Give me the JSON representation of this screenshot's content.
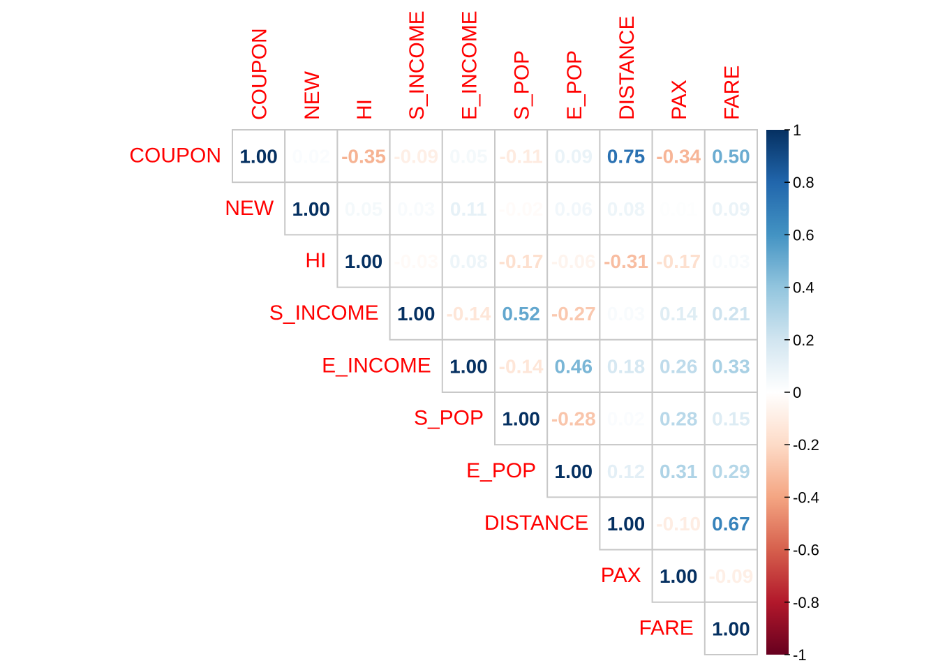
{
  "chart_data": {
    "type": "heatmap",
    "subtype": "correlation-matrix-upper",
    "variables": [
      "COUPON",
      "NEW",
      "HI",
      "S_INCOME",
      "E_INCOME",
      "S_POP",
      "E_POP",
      "DISTANCE",
      "PAX",
      "FARE"
    ],
    "matrix": [
      [
        1.0,
        0.02,
        -0.35,
        -0.09,
        0.05,
        -0.11,
        0.09,
        0.75,
        -0.34,
        0.5
      ],
      [
        null,
        1.0,
        0.05,
        0.03,
        0.11,
        -0.02,
        0.06,
        0.08,
        0.01,
        0.09
      ],
      [
        null,
        null,
        1.0,
        -0.03,
        0.08,
        -0.17,
        -0.06,
        -0.31,
        -0.17,
        0.03
      ],
      [
        null,
        null,
        null,
        1.0,
        -0.14,
        0.52,
        -0.27,
        0.03,
        0.14,
        0.21
      ],
      [
        null,
        null,
        null,
        null,
        1.0,
        -0.14,
        0.46,
        0.18,
        0.26,
        0.33
      ],
      [
        null,
        null,
        null,
        null,
        null,
        1.0,
        -0.28,
        0.02,
        0.28,
        0.15
      ],
      [
        null,
        null,
        null,
        null,
        null,
        null,
        1.0,
        0.12,
        0.31,
        0.29
      ],
      [
        null,
        null,
        null,
        null,
        null,
        null,
        null,
        1.0,
        -0.1,
        0.67
      ],
      [
        null,
        null,
        null,
        null,
        null,
        null,
        null,
        null,
        1.0,
        -0.09
      ],
      [
        null,
        null,
        null,
        null,
        null,
        null,
        null,
        null,
        null,
        1.0
      ]
    ],
    "label_color": "#ff0000",
    "colorbar": {
      "range": [
        -1,
        1
      ],
      "ticks": [
        "1",
        "0.8",
        "0.6",
        "0.4",
        "0.2",
        "0",
        "-0.2",
        "-0.4",
        "-0.6",
        "-0.8",
        "-1"
      ],
      "colors": [
        "#67001F",
        "#B2182B",
        "#D6604D",
        "#F4A582",
        "#FDDBC7",
        "#FFFFFF",
        "#D1E5F0",
        "#92C5DE",
        "#4393C3",
        "#2166AC",
        "#053061"
      ]
    }
  }
}
